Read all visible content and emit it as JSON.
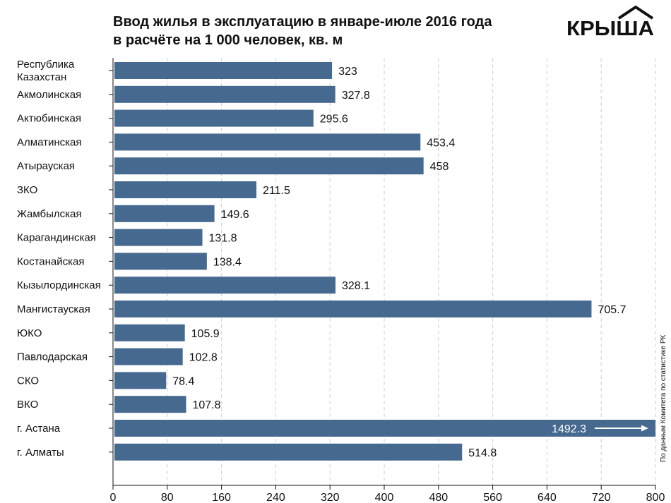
{
  "title_line1": "Ввод жилья в эксплуатацию в январе-июле 2016 года",
  "title_line2": "в расчёте на 1 000 человек, кв. м",
  "logo_text": "КРЫША",
  "source_note": "По данным Комитета по статистике РК",
  "colors": {
    "bar": "#46698F",
    "grid": "#CFCFCF",
    "axis": "#111111",
    "text": "#111111"
  },
  "chart_data": {
    "type": "bar",
    "orientation": "horizontal",
    "categories": [
      "Республика Казахстан",
      "Акмолинская",
      "Актюбинская",
      "Алматинская",
      "Атырауская",
      "ЗКО",
      "Жамбылская",
      "Карагандинская",
      "Костанайская",
      "Кызылординская",
      "Мангистауская",
      "ЮКО",
      "Павлодарская",
      "СКО",
      "ВКО",
      "г. Астана",
      "г. Алматы"
    ],
    "category_label_lines": [
      [
        "Республика",
        "Казахстан"
      ],
      [
        "Акмолинская"
      ],
      [
        "Актюбинская"
      ],
      [
        "Алматинская"
      ],
      [
        "Атырауская"
      ],
      [
        "ЗКО"
      ],
      [
        "Жамбылская"
      ],
      [
        "Карагандинская"
      ],
      [
        "Костанайская"
      ],
      [
        "Кызылординская"
      ],
      [
        "Мангистауская"
      ],
      [
        "ЮКО"
      ],
      [
        "Павлодарская"
      ],
      [
        "СКО"
      ],
      [
        "ВКО"
      ],
      [
        "г. Астана"
      ],
      [
        "г. Алматы"
      ]
    ],
    "values": [
      323,
      327.8,
      295.6,
      453.4,
      458,
      211.5,
      149.6,
      131.8,
      138.4,
      328.1,
      705.7,
      105.9,
      102.8,
      78.4,
      107.8,
      1492.3,
      514.8
    ],
    "value_labels": [
      "323",
      "327.8",
      "295.6",
      "453.4",
      "458",
      "211.5",
      "149.6",
      "131.8",
      "138.4",
      "328.1",
      "705.7",
      "105.9",
      "102.8",
      "78.4",
      "107.8",
      "1492.3",
      "514.8"
    ],
    "xlim": [
      0,
      800
    ],
    "xticks": [
      0,
      80,
      160,
      240,
      320,
      400,
      480,
      560,
      640,
      720,
      800
    ],
    "xtick_labels": [
      "0",
      "80",
      "160",
      "240",
      "320",
      "400",
      "480",
      "560",
      "640",
      "720",
      "800"
    ],
    "grid": "vertical dashed",
    "legend": "none",
    "clipped_bar_marker": "right-arrow"
  }
}
